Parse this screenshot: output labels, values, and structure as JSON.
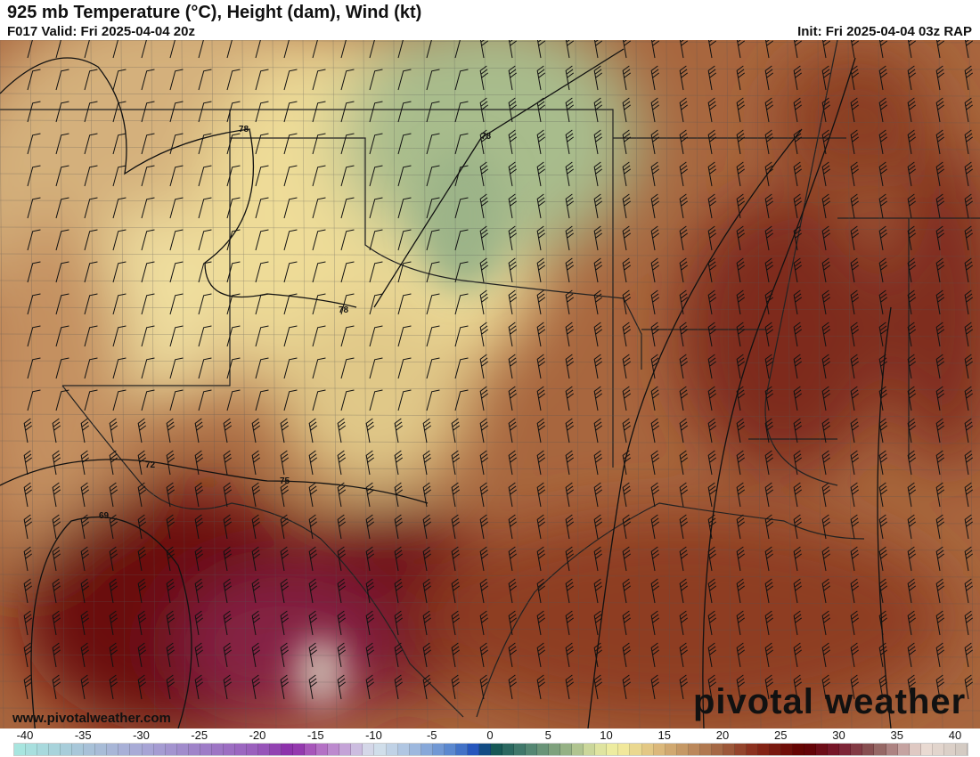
{
  "header": {
    "title": "925 mb Temperature (°C), Height (dam), Wind (kt)",
    "valid": "F017 Valid: Fri 2025-04-04 20z",
    "init": "Init: Fri 2025-04-04 03z RAP"
  },
  "map": {
    "contour_labels": [
      "78",
      "78",
      "78",
      "72",
      "75",
      "69"
    ],
    "colors": {
      "cool_north": "#e8d8a0",
      "green": "#a8bc8c",
      "hot": "#6a0810",
      "magenta": "#862444",
      "east_brown": "#9a5634",
      "pale": "#c8b0a8"
    }
  },
  "footer": {
    "website": "www.pivotalweather.com",
    "logo": "pivotal weather"
  },
  "colorbar": {
    "ticks": [
      "-40",
      "-35",
      "-30",
      "-25",
      "-20",
      "-15",
      "-10",
      "-5",
      "0",
      "5",
      "10",
      "15",
      "20",
      "25",
      "30",
      "35",
      "40"
    ],
    "units": "°C"
  }
}
